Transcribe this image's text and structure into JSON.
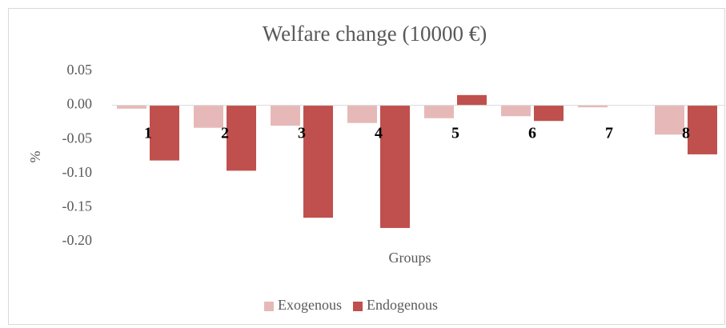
{
  "chart_data": {
    "type": "bar",
    "title": "Welfare change (10000 €)",
    "x_label": "Groups",
    "y_label": "%",
    "categories": [
      "1",
      "2",
      "3",
      "4",
      "5",
      "6",
      "7",
      "8"
    ],
    "series": [
      {
        "name": "Exogenous",
        "color": "#e6b9b8",
        "values": [
          -0.005,
          -0.033,
          -0.03,
          -0.026,
          -0.019,
          -0.016,
          -0.003,
          -0.043
        ]
      },
      {
        "name": "Endogenous",
        "color": "#c0504d",
        "values": [
          -0.081,
          -0.096,
          -0.165,
          -0.18,
          0.015,
          -0.023,
          0,
          -0.072
        ]
      }
    ],
    "ylim": [
      -0.2,
      0.05
    ],
    "yticks": [
      0.05,
      {
        "value": 0,
        "label": "0.00"
      },
      -0.05,
      {
        "value": -0.1,
        "label": "-0.10"
      },
      -0.15,
      {
        "value": -0.2,
        "label": "-0.20"
      }
    ],
    "legend": "bottom"
  }
}
